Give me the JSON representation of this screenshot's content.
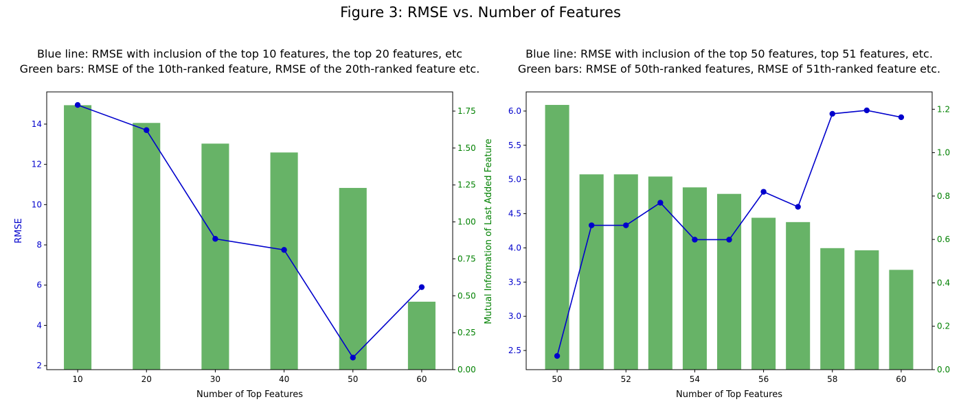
{
  "figure_title": "Figure 3: RMSE vs. Number of Features",
  "colors": {
    "line": "#0000cc",
    "bar": "#4ca64c",
    "left_axis": "#0000cc",
    "right_axis": "#008000"
  },
  "chart_data": [
    {
      "type": "bar+line",
      "title_lines": [
        "Blue line: RMSE with inclusion of the top 10 features, the top 20 features, etc",
        "Green bars: RMSE of the 10th-ranked feature, RMSE of the 20th-ranked feature etc."
      ],
      "xlabel": "Number of Top Features",
      "ylabel": "RMSE",
      "ylabel_right": "Mutual Information of Last Added Feature",
      "x": [
        10,
        20,
        30,
        40,
        50,
        60
      ],
      "xticks": [
        10,
        20,
        30,
        40,
        50,
        60
      ],
      "xlim": [
        5.5,
        64.5
      ],
      "bar_width": 4,
      "line_values": [
        14.95,
        13.7,
        8.3,
        7.75,
        2.4,
        5.9
      ],
      "bar_values": [
        1.79,
        1.67,
        1.53,
        1.47,
        1.23,
        0.46
      ],
      "ylim_left": [
        1.8,
        15.6
      ],
      "ylim_right": [
        0,
        1.88
      ],
      "yticks_left": [
        2,
        4,
        6,
        8,
        10,
        12,
        14
      ],
      "yticks_right": [
        "0.00",
        "0.25",
        "0.50",
        "0.75",
        "1.00",
        "1.25",
        "1.50",
        "1.75"
      ]
    },
    {
      "type": "bar+line",
      "title_lines": [
        "Blue line: RMSE with inclusion of the top 50 features, top 51 features, etc.",
        "Green bars: RMSE of 50th-ranked features, RMSE of 51th-ranked feature etc."
      ],
      "xlabel": "Number of Top Features",
      "ylabel": "",
      "ylabel_right": "",
      "x": [
        50,
        51,
        52,
        53,
        54,
        55,
        56,
        57,
        58,
        59,
        60
      ],
      "xticks": [
        50,
        52,
        54,
        56,
        58,
        60
      ],
      "xlim": [
        49.1,
        60.9
      ],
      "bar_width": 0.7,
      "line_values": [
        2.42,
        4.33,
        4.33,
        4.66,
        4.12,
        4.12,
        4.82,
        4.6,
        5.96,
        6.01,
        5.91
      ],
      "bar_values": [
        1.22,
        0.9,
        0.9,
        0.89,
        0.84,
        0.81,
        0.7,
        0.68,
        0.56,
        0.55,
        0.46
      ],
      "ylim_left": [
        2.22,
        6.28
      ],
      "ylim_right": [
        0,
        1.28
      ],
      "yticks_left": [
        "2.5",
        "3.0",
        "3.5",
        "4.0",
        "4.5",
        "5.0",
        "5.5",
        "6.0"
      ],
      "yticks_right": [
        "0.0",
        "0.2",
        "0.4",
        "0.6",
        "0.8",
        "1.0",
        "1.2"
      ]
    }
  ]
}
